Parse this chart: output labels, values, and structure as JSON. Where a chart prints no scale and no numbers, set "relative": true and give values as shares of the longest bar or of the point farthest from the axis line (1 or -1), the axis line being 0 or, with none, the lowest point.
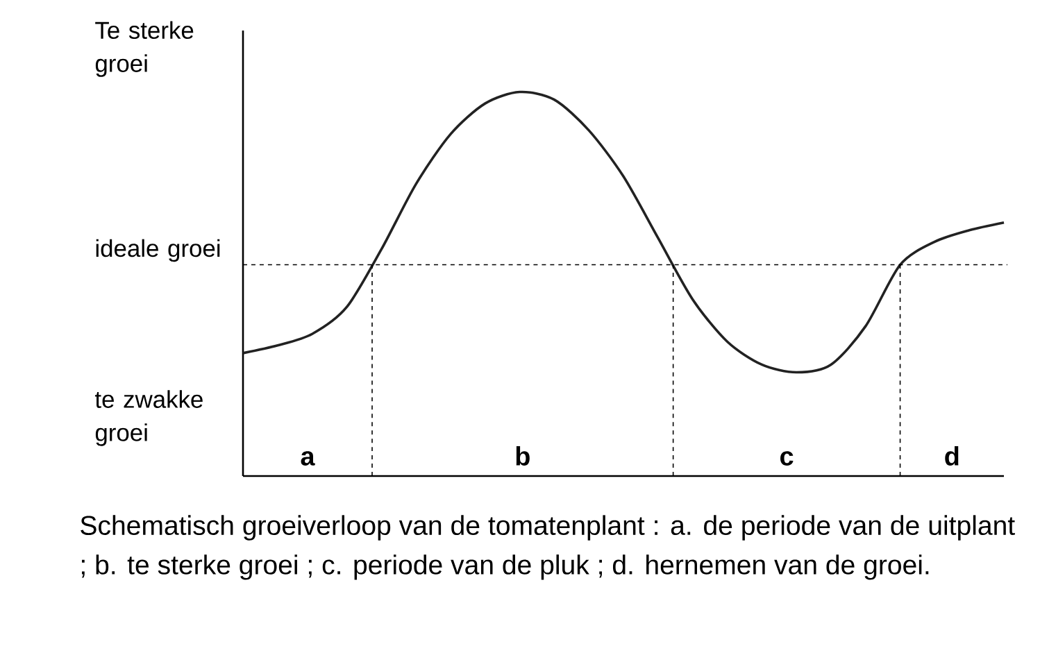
{
  "chart_data": {
    "type": "line",
    "relative": true,
    "categories": [
      null,
      null,
      null,
      null,
      null,
      null,
      null,
      null,
      null,
      null,
      null,
      null,
      null,
      null,
      null,
      null,
      null,
      null,
      null,
      null,
      null,
      null,
      null
    ],
    "series": [
      {
        "color": "#222222",
        "values": [
          0.32,
          0.34,
          0.37,
          0.44,
          0.59,
          0.76,
          0.89,
          0.97,
          1.0,
          0.98,
          0.9,
          0.78,
          0.62,
          0.46,
          0.35,
          0.29,
          0.27,
          0.29,
          0.39,
          0.55,
          0.61,
          0.64,
          0.66
        ]
      }
    ],
    "ref_lines": [
      {
        "axis": "y",
        "value": 0.55,
        "label": "ideale groei",
        "line_style": "dashed"
      }
    ],
    "annotations": [
      "Te sterke groei",
      "te zwakke groei",
      "a",
      "b",
      "c",
      "d",
      "Schematisch groeiverloop van de tomatenplant : a. de periode van de uitplant ; b. te sterke groei ; c. periode van de pluk ; d. hernemen van de groei."
    ],
    "marker": "none",
    "line_style": "solid"
  }
}
